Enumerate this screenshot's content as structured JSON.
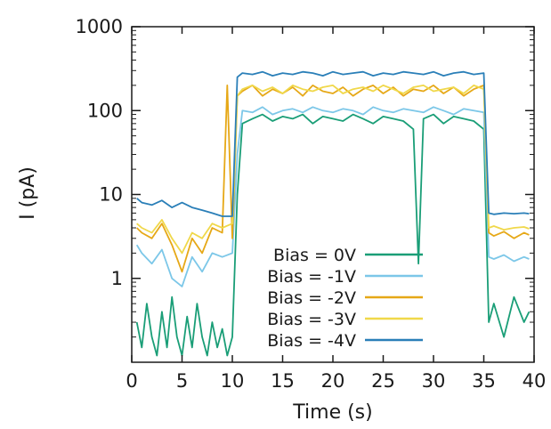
{
  "chart_data": {
    "type": "line",
    "title": "",
    "xlabel": "Time (s)",
    "ylabel": "I (pA)",
    "x_scale": "linear",
    "y_scale": "log",
    "xlim": [
      0,
      40
    ],
    "ylim": [
      0.1,
      1000
    ],
    "x_ticks": [
      0,
      5,
      10,
      15,
      20,
      25,
      30,
      35,
      40
    ],
    "x_tick_labels": [
      "0",
      "5",
      "10",
      "15",
      "20",
      "25",
      "30",
      "35",
      "40"
    ],
    "y_ticks": [
      1,
      10,
      100,
      1000
    ],
    "y_tick_labels": [
      "1",
      "10",
      "100",
      "1000"
    ],
    "grid": false,
    "legend_position": "bottom-center",
    "series": [
      {
        "name": "Bias = 0V",
        "color": "#1a9e77",
        "x": [
          0.5,
          1,
          1.5,
          2,
          2.5,
          3,
          3.5,
          4,
          4.5,
          5,
          5.5,
          6,
          6.5,
          7,
          7.5,
          8,
          8.5,
          9,
          9.5,
          10,
          10.5,
          11,
          12,
          13,
          14,
          15,
          16,
          17,
          18,
          19,
          20,
          21,
          22,
          23,
          24,
          25,
          26,
          27,
          28,
          28.5,
          29,
          30,
          31,
          32,
          33,
          34,
          35,
          35.5,
          36,
          37,
          38,
          39,
          39.5
        ],
        "y": [
          0.3,
          0.15,
          0.5,
          0.2,
          0.12,
          0.4,
          0.15,
          0.6,
          0.2,
          0.12,
          0.35,
          0.15,
          0.5,
          0.2,
          0.12,
          0.3,
          0.15,
          0.25,
          0.12,
          0.2,
          10,
          70,
          80,
          90,
          75,
          85,
          80,
          90,
          70,
          85,
          80,
          75,
          90,
          80,
          70,
          85,
          80,
          75,
          60,
          1.5,
          80,
          90,
          70,
          85,
          80,
          75,
          60,
          0.3,
          0.5,
          0.2,
          0.6,
          0.3,
          0.4
        ]
      },
      {
        "name": "Bias = -1V",
        "color": "#7cc7e8",
        "x": [
          0.5,
          1,
          2,
          3,
          4,
          5,
          6,
          7,
          8,
          9,
          10,
          10.5,
          11,
          12,
          13,
          14,
          15,
          16,
          17,
          18,
          19,
          20,
          21,
          22,
          23,
          24,
          25,
          26,
          27,
          28,
          29,
          30,
          31,
          32,
          33,
          34,
          35,
          35.5,
          36,
          37,
          38,
          39,
          39.5
        ],
        "y": [
          2.5,
          2.0,
          1.5,
          2.2,
          1.0,
          0.8,
          1.8,
          1.2,
          2.0,
          1.8,
          2.0,
          30,
          100,
          95,
          110,
          90,
          100,
          105,
          95,
          110,
          100,
          95,
          105,
          100,
          90,
          110,
          100,
          95,
          105,
          100,
          95,
          110,
          100,
          90,
          105,
          100,
          95,
          1.8,
          1.7,
          1.9,
          1.6,
          1.8,
          1.7
        ]
      },
      {
        "name": "Bias = -2V",
        "color": "#e6a817",
        "x": [
          0.5,
          1,
          2,
          3,
          4,
          5,
          6,
          7,
          8,
          9,
          9.5,
          10,
          10.5,
          11,
          12,
          13,
          14,
          15,
          16,
          17,
          18,
          19,
          20,
          21,
          22,
          23,
          24,
          25,
          26,
          27,
          28,
          29,
          30,
          31,
          32,
          33,
          34,
          35,
          35.5,
          36,
          37,
          38,
          39,
          39.5
        ],
        "y": [
          4.0,
          3.5,
          3.0,
          4.5,
          2.5,
          1.2,
          3.0,
          2.0,
          4.0,
          3.5,
          200,
          3.0,
          150,
          170,
          200,
          150,
          180,
          160,
          190,
          150,
          200,
          170,
          160,
          190,
          150,
          180,
          200,
          160,
          190,
          150,
          180,
          170,
          200,
          160,
          190,
          150,
          180,
          200,
          3.5,
          3.2,
          3.6,
          3.0,
          3.5,
          3.3
        ]
      },
      {
        "name": "Bias = -3V",
        "color": "#f0d84a",
        "x": [
          0.5,
          1,
          2,
          3,
          4,
          5,
          6,
          7,
          8,
          9,
          10,
          10.5,
          11,
          12,
          13,
          14,
          15,
          16,
          17,
          18,
          19,
          20,
          21,
          22,
          23,
          24,
          25,
          26,
          27,
          28,
          29,
          30,
          31,
          32,
          33,
          34,
          35,
          35.5,
          36,
          37,
          38,
          39,
          39.5
        ],
        "y": [
          4.5,
          4.0,
          3.5,
          5.0,
          3.0,
          2.0,
          3.5,
          3.0,
          4.5,
          4.0,
          4.5,
          150,
          180,
          200,
          170,
          190,
          160,
          200,
          180,
          170,
          190,
          200,
          160,
          180,
          190,
          170,
          200,
          180,
          160,
          190,
          200,
          170,
          180,
          190,
          160,
          200,
          180,
          4.0,
          4.2,
          3.8,
          4.0,
          4.1,
          3.9
        ]
      },
      {
        "name": "Bias = -4V",
        "color": "#2a7fb8",
        "x": [
          0.5,
          1,
          2,
          3,
          4,
          5,
          6,
          7,
          8,
          9,
          10,
          10.5,
          11,
          12,
          13,
          14,
          15,
          16,
          17,
          18,
          19,
          20,
          21,
          22,
          23,
          24,
          25,
          26,
          27,
          28,
          29,
          30,
          31,
          32,
          33,
          34,
          35,
          35.5,
          36,
          37,
          38,
          39,
          39.5
        ],
        "y": [
          9.0,
          8.0,
          7.5,
          8.5,
          7.0,
          8.0,
          7.0,
          6.5,
          6.0,
          5.5,
          5.5,
          250,
          280,
          270,
          290,
          260,
          280,
          270,
          290,
          280,
          260,
          290,
          270,
          280,
          290,
          260,
          280,
          270,
          290,
          280,
          270,
          290,
          260,
          280,
          290,
          270,
          280,
          6.0,
          5.8,
          6.0,
          5.9,
          6.0,
          5.9
        ]
      }
    ]
  }
}
